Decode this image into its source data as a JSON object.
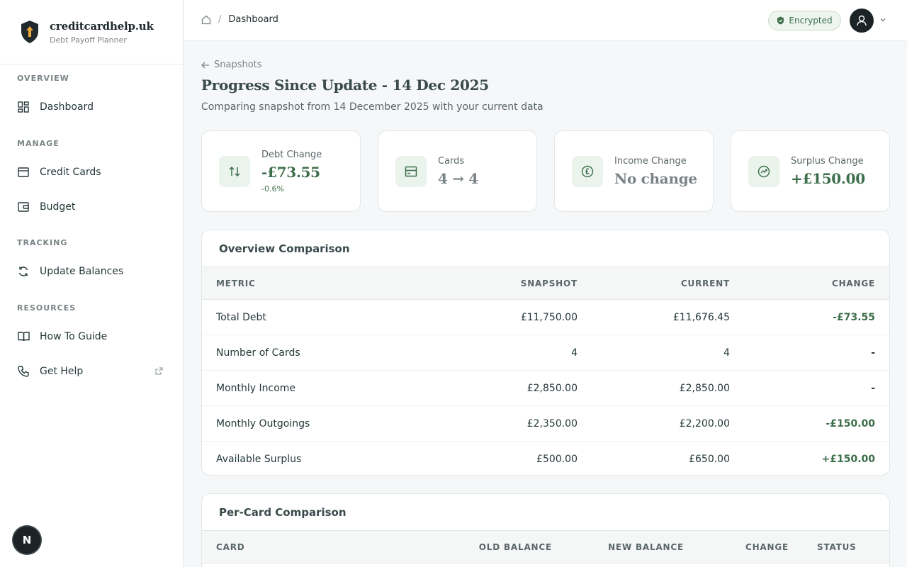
{
  "brand": {
    "name": "creditcardhelp.uk",
    "tagline": "Debt Payoff Planner"
  },
  "sidebar": {
    "sections": [
      {
        "title": "OVERVIEW",
        "items": [
          {
            "label": "Dashboard",
            "icon": "grid-icon"
          }
        ]
      },
      {
        "title": "MANAGE",
        "items": [
          {
            "label": "Credit Cards",
            "icon": "card-icon"
          },
          {
            "label": "Budget",
            "icon": "wallet-icon"
          }
        ]
      },
      {
        "title": "TRACKING",
        "items": [
          {
            "label": "Update Balances",
            "icon": "refresh-icon"
          }
        ]
      },
      {
        "title": "RESOURCES",
        "items": [
          {
            "label": "How To Guide",
            "icon": "book-icon"
          },
          {
            "label": "Get Help",
            "icon": "phone-icon"
          }
        ]
      }
    ],
    "badge": "N"
  },
  "topbar": {
    "crumb": "Dashboard",
    "crumb_sep": "/",
    "encrypted": "Encrypted"
  },
  "page": {
    "back": "Snapshots",
    "title": "Progress Since Update - 14 Dec 2025",
    "subtitle": "Comparing snapshot from 14 December 2025 with your current data"
  },
  "stats": [
    {
      "label": "Debt Change",
      "value": "-£73.55",
      "sub": "-0.6%",
      "icon": "arrows-updown-icon"
    },
    {
      "label": "Cards",
      "value": "4 → 4",
      "icon": "card-icon"
    },
    {
      "label": "Income Change",
      "value": "No change",
      "icon": "pound-icon"
    },
    {
      "label": "Surplus Change",
      "value": "+£150.00",
      "icon": "trend-icon"
    }
  ],
  "overview": {
    "title": "Overview Comparison",
    "columns": [
      "METRIC",
      "SNAPSHOT",
      "CURRENT",
      "CHANGE"
    ],
    "rows": [
      {
        "metric": "Total Debt",
        "snapshot": "£11,750.00",
        "current": "£11,676.45",
        "change": "-£73.55"
      },
      {
        "metric": "Number of Cards",
        "snapshot": "4",
        "current": "4",
        "change": "-"
      },
      {
        "metric": "Monthly Income",
        "snapshot": "£2,850.00",
        "current": "£2,850.00",
        "change": "-"
      },
      {
        "metric": "Monthly Outgoings",
        "snapshot": "£2,350.00",
        "current": "£2,200.00",
        "change": "-£150.00"
      },
      {
        "metric": "Available Surplus",
        "snapshot": "£500.00",
        "current": "£650.00",
        "change": "+£150.00"
      }
    ]
  },
  "percard": {
    "title": "Per-Card Comparison",
    "columns": [
      "CARD",
      "OLD BALANCE",
      "NEW BALANCE",
      "CHANGE",
      "STATUS"
    ]
  },
  "colors": {
    "accent": "#3c6e4a",
    "dark": "#1c2326",
    "muted": "#7a8486"
  }
}
